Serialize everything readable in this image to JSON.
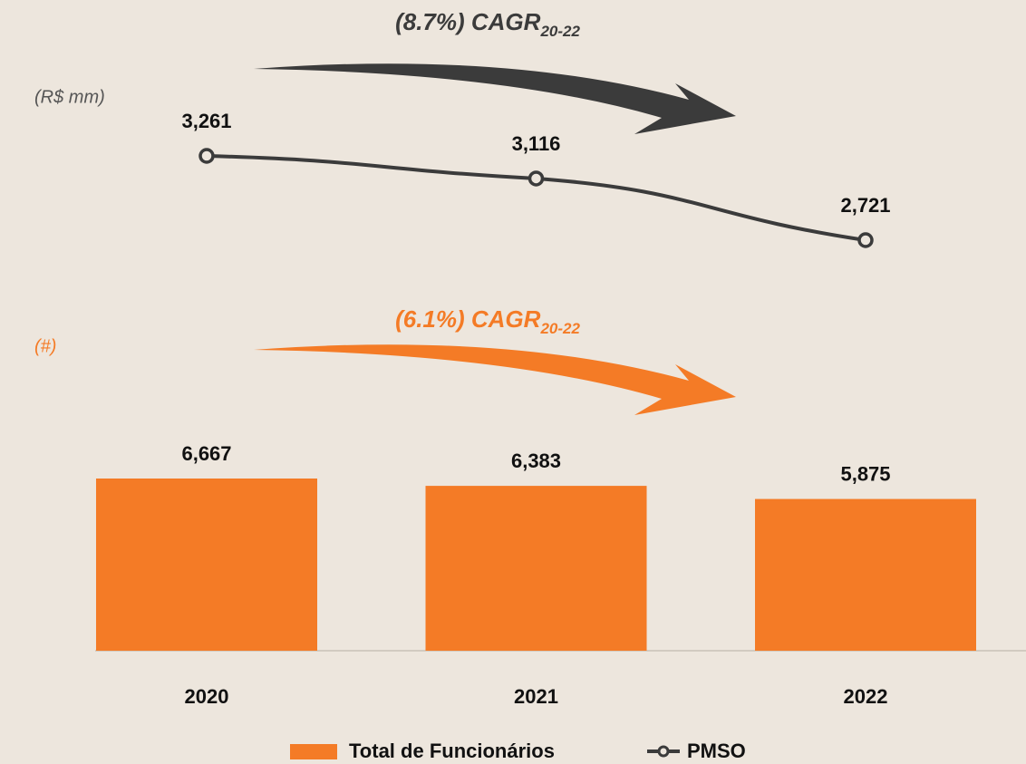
{
  "chart_data": [
    {
      "type": "line",
      "unit_label": "(R$ mm)",
      "annotation": "(8.7%) CAGR",
      "annotation_subscript": "20-22",
      "series": [
        {
          "name": "PMSO",
          "color": "#3b3b3b",
          "values": [
            3261,
            3116,
            2721
          ],
          "value_labels": [
            "3,261",
            "3,116",
            "2,721"
          ]
        }
      ]
    },
    {
      "type": "bar",
      "unit_label": "(#)",
      "annotation": "(6.1%) CAGR",
      "annotation_subscript": "20-22",
      "categories": [
        "2020",
        "2021",
        "2022"
      ],
      "series": [
        {
          "name": "Total de Funcionários",
          "color": "#f47b26",
          "values": [
            6667,
            6383,
            5875
          ],
          "value_labels": [
            "6,667",
            "6,383",
            "5,875"
          ]
        }
      ]
    }
  ]
}
